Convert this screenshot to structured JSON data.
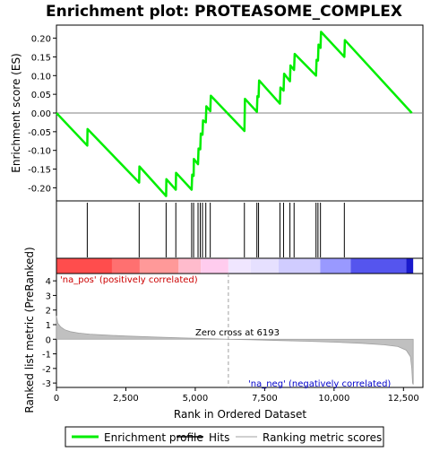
{
  "chart_data": {
    "type": "line",
    "title": "Enrichment plot: PROTEASOME_COMPLEX",
    "top_panel": {
      "ylabel": "Enrichment score (ES)",
      "ylim": [
        -0.235,
        0.235
      ],
      "yticks": [
        -0.2,
        -0.15,
        -0.1,
        -0.05,
        0.0,
        0.05,
        0.1,
        0.15,
        0.2
      ],
      "ytick_labels": [
        "-0.20",
        "-0.15",
        "-0.10",
        "-0.05",
        "0.00",
        "0.05",
        "0.10",
        "0.15",
        "0.20"
      ],
      "series": [
        {
          "name": "Enrichment profile",
          "color": "#00ee00",
          "x": [
            0,
            1110,
            1120,
            2980,
            2990,
            3950,
            3960,
            4300,
            4310,
            4870,
            4890,
            4940,
            4950,
            5100,
            5120,
            5180,
            5200,
            5260,
            5280,
            5380,
            5400,
            5540,
            5560,
            6770,
            6790,
            7220,
            7240,
            7280,
            7300,
            8050,
            8070,
            8180,
            8200,
            8410,
            8430,
            8560,
            8580,
            9350,
            9370,
            9420,
            9440,
            9510,
            9530,
            10370,
            10390,
            12800
          ],
          "y": [
            0.0,
            -0.087,
            -0.043,
            -0.186,
            -0.143,
            -0.222,
            -0.177,
            -0.205,
            -0.16,
            -0.205,
            -0.165,
            -0.168,
            -0.123,
            -0.137,
            -0.095,
            -0.097,
            -0.055,
            -0.058,
            -0.02,
            -0.025,
            0.018,
            0.005,
            0.046,
            -0.048,
            0.038,
            0.003,
            0.045,
            0.043,
            0.087,
            0.025,
            0.068,
            0.06,
            0.105,
            0.085,
            0.127,
            0.115,
            0.158,
            0.1,
            0.142,
            0.14,
            0.183,
            0.174,
            0.217,
            0.15,
            0.195,
            0.0
          ]
        }
      ]
    },
    "hits": {
      "name": "Hits",
      "color": "#000000",
      "x": [
        1110,
        2980,
        3950,
        4300,
        4870,
        4940,
        5100,
        5180,
        5260,
        5380,
        5540,
        6770,
        7220,
        7280,
        8050,
        8180,
        8410,
        8560,
        9350,
        9420,
        9510,
        10370
      ]
    },
    "ranking_bar": {
      "segments": [
        {
          "from": 0,
          "to": 2000,
          "color": "#ff4d4d"
        },
        {
          "from": 2000,
          "to": 3000,
          "color": "#ff7070"
        },
        {
          "from": 3000,
          "to": 4400,
          "color": "#ff9999"
        },
        {
          "from": 4400,
          "to": 5200,
          "color": "#ffbbcc"
        },
        {
          "from": 5200,
          "to": 6193,
          "color": "#ffccee"
        },
        {
          "from": 6193,
          "to": 7000,
          "color": "#f0e6ff"
        },
        {
          "from": 7000,
          "to": 8000,
          "color": "#e6e0ff"
        },
        {
          "from": 8000,
          "to": 9500,
          "color": "#d0ccff"
        },
        {
          "from": 9500,
          "to": 10600,
          "color": "#9999ff"
        },
        {
          "from": 10600,
          "to": 12600,
          "color": "#5555ee"
        },
        {
          "from": 12600,
          "to": 12850,
          "color": "#1a1acc"
        }
      ]
    },
    "bottom_panel": {
      "ylabel": "Ranked list metric (PreRanked)",
      "xlabel": "Rank in Ordered Dataset",
      "xlim": [
        0,
        13200
      ],
      "ylim": [
        -3.3,
        4.5
      ],
      "xticks": [
        0,
        2500,
        5000,
        7500,
        10000,
        12500
      ],
      "xtick_labels": [
        "0",
        "2,500",
        "5,000",
        "7,500",
        "10,000",
        "12,500"
      ],
      "yticks": [
        -3,
        -2,
        -1,
        0,
        1,
        2,
        3,
        4
      ],
      "ytick_labels": [
        "-3",
        "-2",
        "-1",
        "0",
        "1",
        "2",
        "3",
        "4"
      ],
      "metric_color": "#c0c0c0",
      "metric_x": [
        0,
        50,
        150,
        300,
        500,
        800,
        1200,
        1800,
        2500,
        3500,
        4500,
        5500,
        6193,
        7000,
        8000,
        9000,
        10000,
        11000,
        11800,
        12300,
        12600,
        12750,
        12800,
        12830,
        12850
      ],
      "metric_y": [
        1.6,
        1.1,
        0.85,
        0.65,
        0.52,
        0.42,
        0.35,
        0.28,
        0.22,
        0.15,
        0.09,
        0.04,
        0.0,
        -0.04,
        -0.09,
        -0.14,
        -0.2,
        -0.28,
        -0.38,
        -0.5,
        -0.75,
        -1.2,
        -2.0,
        -3.0,
        -3.1
      ],
      "zero_cross_label": "Zero cross at 6193",
      "zero_cross_x": 6193,
      "pos_label": "'na_pos' (positively correlated)",
      "neg_label": "'na_neg' (negatively correlated)"
    },
    "legend": {
      "items": [
        {
          "label": "Enrichment profile",
          "color": "#00ee00"
        },
        {
          "label": "Hits",
          "color": "#000000"
        },
        {
          "label": "Ranking metric scores",
          "color": "#c0c0c0"
        }
      ]
    }
  }
}
